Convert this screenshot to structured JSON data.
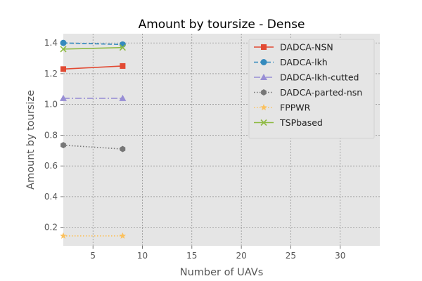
{
  "chart_data": {
    "type": "line",
    "title": "Amount by toursize - Dense",
    "xlabel": "Number of UAVs",
    "ylabel": "Amount by toursize",
    "xlim": [
      2,
      34
    ],
    "ylim": [
      0.08,
      1.46
    ],
    "xticks": [
      5,
      10,
      15,
      20,
      25,
      30
    ],
    "yticks": [
      0.2,
      0.4,
      0.6,
      0.8,
      1.0,
      1.2,
      1.4
    ],
    "xtick_labels": [
      "5",
      "10",
      "15",
      "20",
      "25",
      "30"
    ],
    "ytick_labels": [
      "0.2",
      "0.4",
      "0.6",
      "0.8",
      "1.0",
      "1.2",
      "1.4"
    ],
    "grid": true,
    "legend_position": "top-right",
    "background": "#e5e5e5",
    "series": [
      {
        "name": "DADCA-NSN",
        "x": [
          2,
          8
        ],
        "y": [
          1.23,
          1.25
        ],
        "color": "#e24a33",
        "dash": "solid",
        "marker": "square"
      },
      {
        "name": "DADCA-lkh",
        "x": [
          2,
          8
        ],
        "y": [
          1.4,
          1.39
        ],
        "color": "#348abd",
        "dash": "dashed",
        "marker": "circle"
      },
      {
        "name": "DADCA-lkh-cutted",
        "x": [
          2,
          8
        ],
        "y": [
          1.04,
          1.04
        ],
        "color": "#988ed5",
        "dash": "dashdot",
        "marker": "triangle"
      },
      {
        "name": "DADCA-parted-nsn",
        "x": [
          2,
          8
        ],
        "y": [
          0.735,
          0.71
        ],
        "color": "#777777",
        "dash": "dotted",
        "marker": "hexagon"
      },
      {
        "name": "FPPWR",
        "x": [
          2,
          8
        ],
        "y": [
          0.145,
          0.145
        ],
        "color": "#fbc15e",
        "dash": "dotted",
        "marker": "star"
      },
      {
        "name": "TSPbased",
        "x": [
          2,
          8
        ],
        "y": [
          1.36,
          1.37
        ],
        "color": "#8eba42",
        "dash": "solid",
        "marker": "x"
      }
    ]
  }
}
